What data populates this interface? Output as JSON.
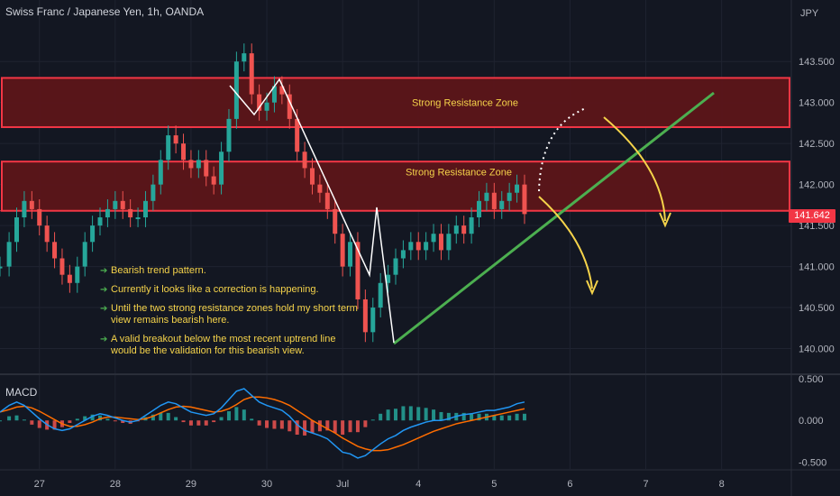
{
  "title": "Swiss Franc / Japanese Yen, 1h, OANDA",
  "currency": "JPY",
  "last_price": "141.642",
  "colors": {
    "background": "#131722",
    "up": "#26a69a",
    "down": "#ef5350",
    "zone_fill": "#5c1519",
    "zone_border": "#f23645",
    "trendline": "#4caf50",
    "annotation": "#f5d34a",
    "macd_line": "#2196f3",
    "signal_line": "#ff6d00"
  },
  "zones": [
    {
      "label": "Strong Resistance Zone",
      "top": 143.3,
      "bottom": 142.7
    },
    {
      "label": "Strong Resistance Zone",
      "top": 142.28,
      "bottom": 141.68
    }
  ],
  "notes": [
    "Bearish trend pattern.",
    "Currently it looks like a correction is happening.",
    "Until the two strong resistance zones hold my short term view remains bearish here.",
    "A valid breakout below the most recent uptrend line would be the validation for this bearish view."
  ],
  "macd_label": "MACD",
  "chart_data": [
    {
      "type": "line",
      "title": "Swiss Franc / Japanese Yen, 1h, OANDA",
      "price_axis": {
        "ticks": [
          "143.500",
          "143.000",
          "142.500",
          "142.000",
          "141.500",
          "141.000",
          "140.500",
          "140.000"
        ],
        "tick_values": [
          143.5,
          143.0,
          142.5,
          142.0,
          141.5,
          141.0,
          140.5,
          140.0
        ],
        "ylim": [
          139.72,
          144.25
        ]
      },
      "time_axis": {
        "labels": [
          "27",
          "28",
          "29",
          "30",
          "Jul",
          "4",
          "5",
          "6",
          "7",
          "8"
        ],
        "positions": [
          0,
          1,
          2,
          3,
          4,
          5,
          6,
          7,
          8,
          9
        ],
        "xlim": [
          -0.52,
          9.92
        ]
      },
      "series": [
        {
          "x": [
            -0.52,
            -0.4,
            -0.3,
            -0.2,
            -0.1,
            0,
            0.1,
            0.2,
            0.3,
            0.4,
            0.5,
            0.6,
            0.7,
            0.8,
            0.9,
            1.0,
            1.1,
            1.2,
            1.3,
            1.4,
            1.5,
            1.6,
            1.7,
            1.8,
            1.9,
            2.0,
            2.1,
            2.2,
            2.3,
            2.4,
            2.5,
            2.6,
            2.7,
            2.8,
            2.9,
            3.0,
            3.1,
            3.2,
            3.3,
            3.4,
            3.5,
            3.6,
            3.7,
            3.8,
            3.9,
            4.0,
            4.1,
            4.2,
            4.3,
            4.4,
            4.5,
            4.6,
            4.7,
            4.8,
            4.9,
            5.0,
            5.1,
            5.2,
            5.3,
            5.4,
            5.5,
            5.6,
            5.7,
            5.8,
            5.9,
            6.0,
            6.1,
            6.2,
            6.3,
            6.4
          ],
          "values": [
            141.0,
            141.3,
            141.6,
            141.8,
            141.7,
            141.5,
            141.3,
            141.1,
            140.9,
            140.8,
            141.0,
            141.3,
            141.5,
            141.6,
            141.7,
            141.8,
            141.7,
            141.6,
            141.6,
            141.8,
            142.0,
            142.3,
            142.6,
            142.5,
            142.3,
            142.2,
            142.3,
            142.1,
            142.0,
            142.4,
            142.8,
            143.5,
            143.6,
            143.1,
            142.9,
            143.0,
            143.2,
            143.1,
            142.8,
            142.4,
            142.2,
            142.0,
            141.9,
            141.7,
            141.4,
            141.0,
            141.3,
            140.6,
            140.2,
            140.5,
            140.8,
            140.9,
            141.1,
            141.2,
            141.3,
            141.2,
            141.3,
            141.4,
            141.2,
            141.4,
            141.5,
            141.4,
            141.6,
            141.8,
            141.9,
            141.7,
            141.8,
            141.9,
            142.0,
            141.64
          ]
        }
      ]
    },
    {
      "type": "bar",
      "title": "MACD",
      "axis": {
        "ticks": [
          "0.500",
          "0.000",
          "-0.500"
        ],
        "tick_values": [
          0.5,
          0.0,
          -0.5
        ],
        "ylim": [
          -0.58,
          0.52
        ]
      },
      "x": [
        -0.52,
        -0.4,
        -0.3,
        -0.2,
        -0.1,
        0,
        0.1,
        0.2,
        0.3,
        0.4,
        0.5,
        0.6,
        0.7,
        0.8,
        0.9,
        1.0,
        1.1,
        1.2,
        1.3,
        1.4,
        1.5,
        1.6,
        1.7,
        1.8,
        1.9,
        2.0,
        2.1,
        2.2,
        2.3,
        2.4,
        2.5,
        2.6,
        2.7,
        2.8,
        2.9,
        3.0,
        3.1,
        3.2,
        3.3,
        3.4,
        3.5,
        3.6,
        3.7,
        3.8,
        3.9,
        4.0,
        4.1,
        4.2,
        4.3,
        4.4,
        4.5,
        4.6,
        4.7,
        4.8,
        4.9,
        5.0,
        5.1,
        5.2,
        5.3,
        5.4,
        5.5,
        5.6,
        5.7,
        5.8,
        5.9,
        6.0,
        6.1,
        6.2,
        6.3,
        6.4
      ],
      "series": [
        {
          "values": [
            0.1,
            0.18,
            0.22,
            0.18,
            0.1,
            0.02,
            -0.05,
            -0.1,
            -0.12,
            -0.1,
            -0.05,
            0,
            0.05,
            0.08,
            0.06,
            0.03,
            0.0,
            -0.02,
            0.0,
            0.06,
            0.12,
            0.18,
            0.22,
            0.2,
            0.15,
            0.1,
            0.08,
            0.06,
            0.08,
            0.15,
            0.25,
            0.35,
            0.38,
            0.3,
            0.22,
            0.18,
            0.15,
            0.12,
            0.05,
            -0.05,
            -0.12,
            -0.15,
            -0.18,
            -0.22,
            -0.3,
            -0.38,
            -0.4,
            -0.45,
            -0.42,
            -0.35,
            -0.28,
            -0.22,
            -0.18,
            -0.12,
            -0.08,
            -0.05,
            -0.02,
            0.0,
            0.0,
            0.02,
            0.05,
            0.07,
            0.08,
            0.1,
            0.12,
            0.12,
            0.14,
            0.16,
            0.2,
            0.22
          ]
        },
        {
          "values": [
            0.1,
            0.13,
            0.16,
            0.17,
            0.15,
            0.11,
            0.06,
            0.01,
            -0.04,
            -0.07,
            -0.07,
            -0.05,
            -0.02,
            0.02,
            0.04,
            0.04,
            0.03,
            0.02,
            0.01,
            0.02,
            0.05,
            0.09,
            0.13,
            0.16,
            0.17,
            0.16,
            0.14,
            0.12,
            0.1,
            0.11,
            0.14,
            0.19,
            0.25,
            0.28,
            0.28,
            0.27,
            0.25,
            0.22,
            0.18,
            0.12,
            0.06,
            0.0,
            -0.05,
            -0.1,
            -0.15,
            -0.21,
            -0.26,
            -0.31,
            -0.34,
            -0.36,
            -0.36,
            -0.35,
            -0.32,
            -0.29,
            -0.25,
            -0.21,
            -0.17,
            -0.13,
            -0.1,
            -0.07,
            -0.04,
            -0.02,
            0.0,
            0.02,
            0.04,
            0.06,
            0.08,
            0.1,
            0.12,
            0.14
          ]
        },
        {
          "values": [
            0.0,
            0.05,
            0.06,
            0.01,
            -0.05,
            -0.09,
            -0.11,
            -0.11,
            -0.08,
            -0.03,
            0.02,
            0.05,
            0.07,
            0.06,
            0.02,
            -0.01,
            -0.03,
            -0.04,
            -0.01,
            0.04,
            0.07,
            0.09,
            0.09,
            0.04,
            -0.02,
            -0.06,
            -0.06,
            -0.06,
            -0.02,
            0.04,
            0.11,
            0.16,
            0.13,
            0.02,
            -0.06,
            -0.09,
            -0.1,
            -0.1,
            -0.13,
            -0.17,
            -0.18,
            -0.15,
            -0.13,
            -0.12,
            -0.15,
            -0.17,
            -0.14,
            -0.14,
            -0.08,
            0.01,
            0.08,
            0.13,
            0.14,
            0.17,
            0.17,
            0.16,
            0.15,
            0.13,
            0.1,
            0.09,
            0.09,
            0.09,
            0.08,
            0.08,
            0.08,
            0.06,
            0.06,
            0.06,
            0.08,
            0.08
          ]
        }
      ]
    }
  ]
}
